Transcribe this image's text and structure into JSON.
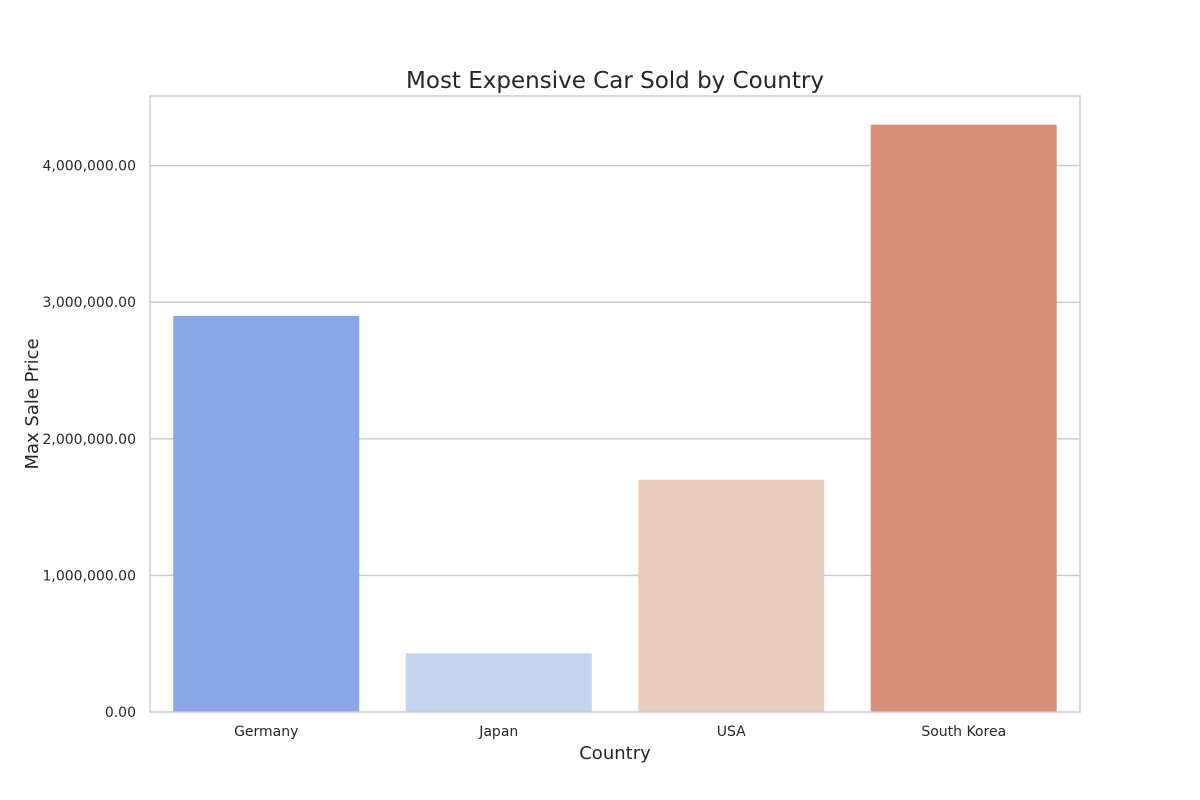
{
  "chart_data": {
    "type": "bar",
    "title": "Most Expensive Car Sold by Country",
    "xlabel": "Country",
    "ylabel": "Max Sale Price",
    "categories": [
      "Germany",
      "Japan",
      "USA",
      "South Korea"
    ],
    "values": [
      2900000,
      430000,
      1700000,
      4300000
    ],
    "colors": [
      "#89a7e8",
      "#c5d4ee",
      "#e8cdbf",
      "#db8e77"
    ],
    "ylim": [
      0,
      4510000
    ],
    "yticks": [
      0,
      1000000,
      2000000,
      3000000,
      4000000
    ],
    "ytick_labels": [
      "0.00",
      "1,000,000.00",
      "2,000,000.00",
      "3,000,000.00",
      "4,000,000.00"
    ],
    "grid": true,
    "legend": "none"
  }
}
